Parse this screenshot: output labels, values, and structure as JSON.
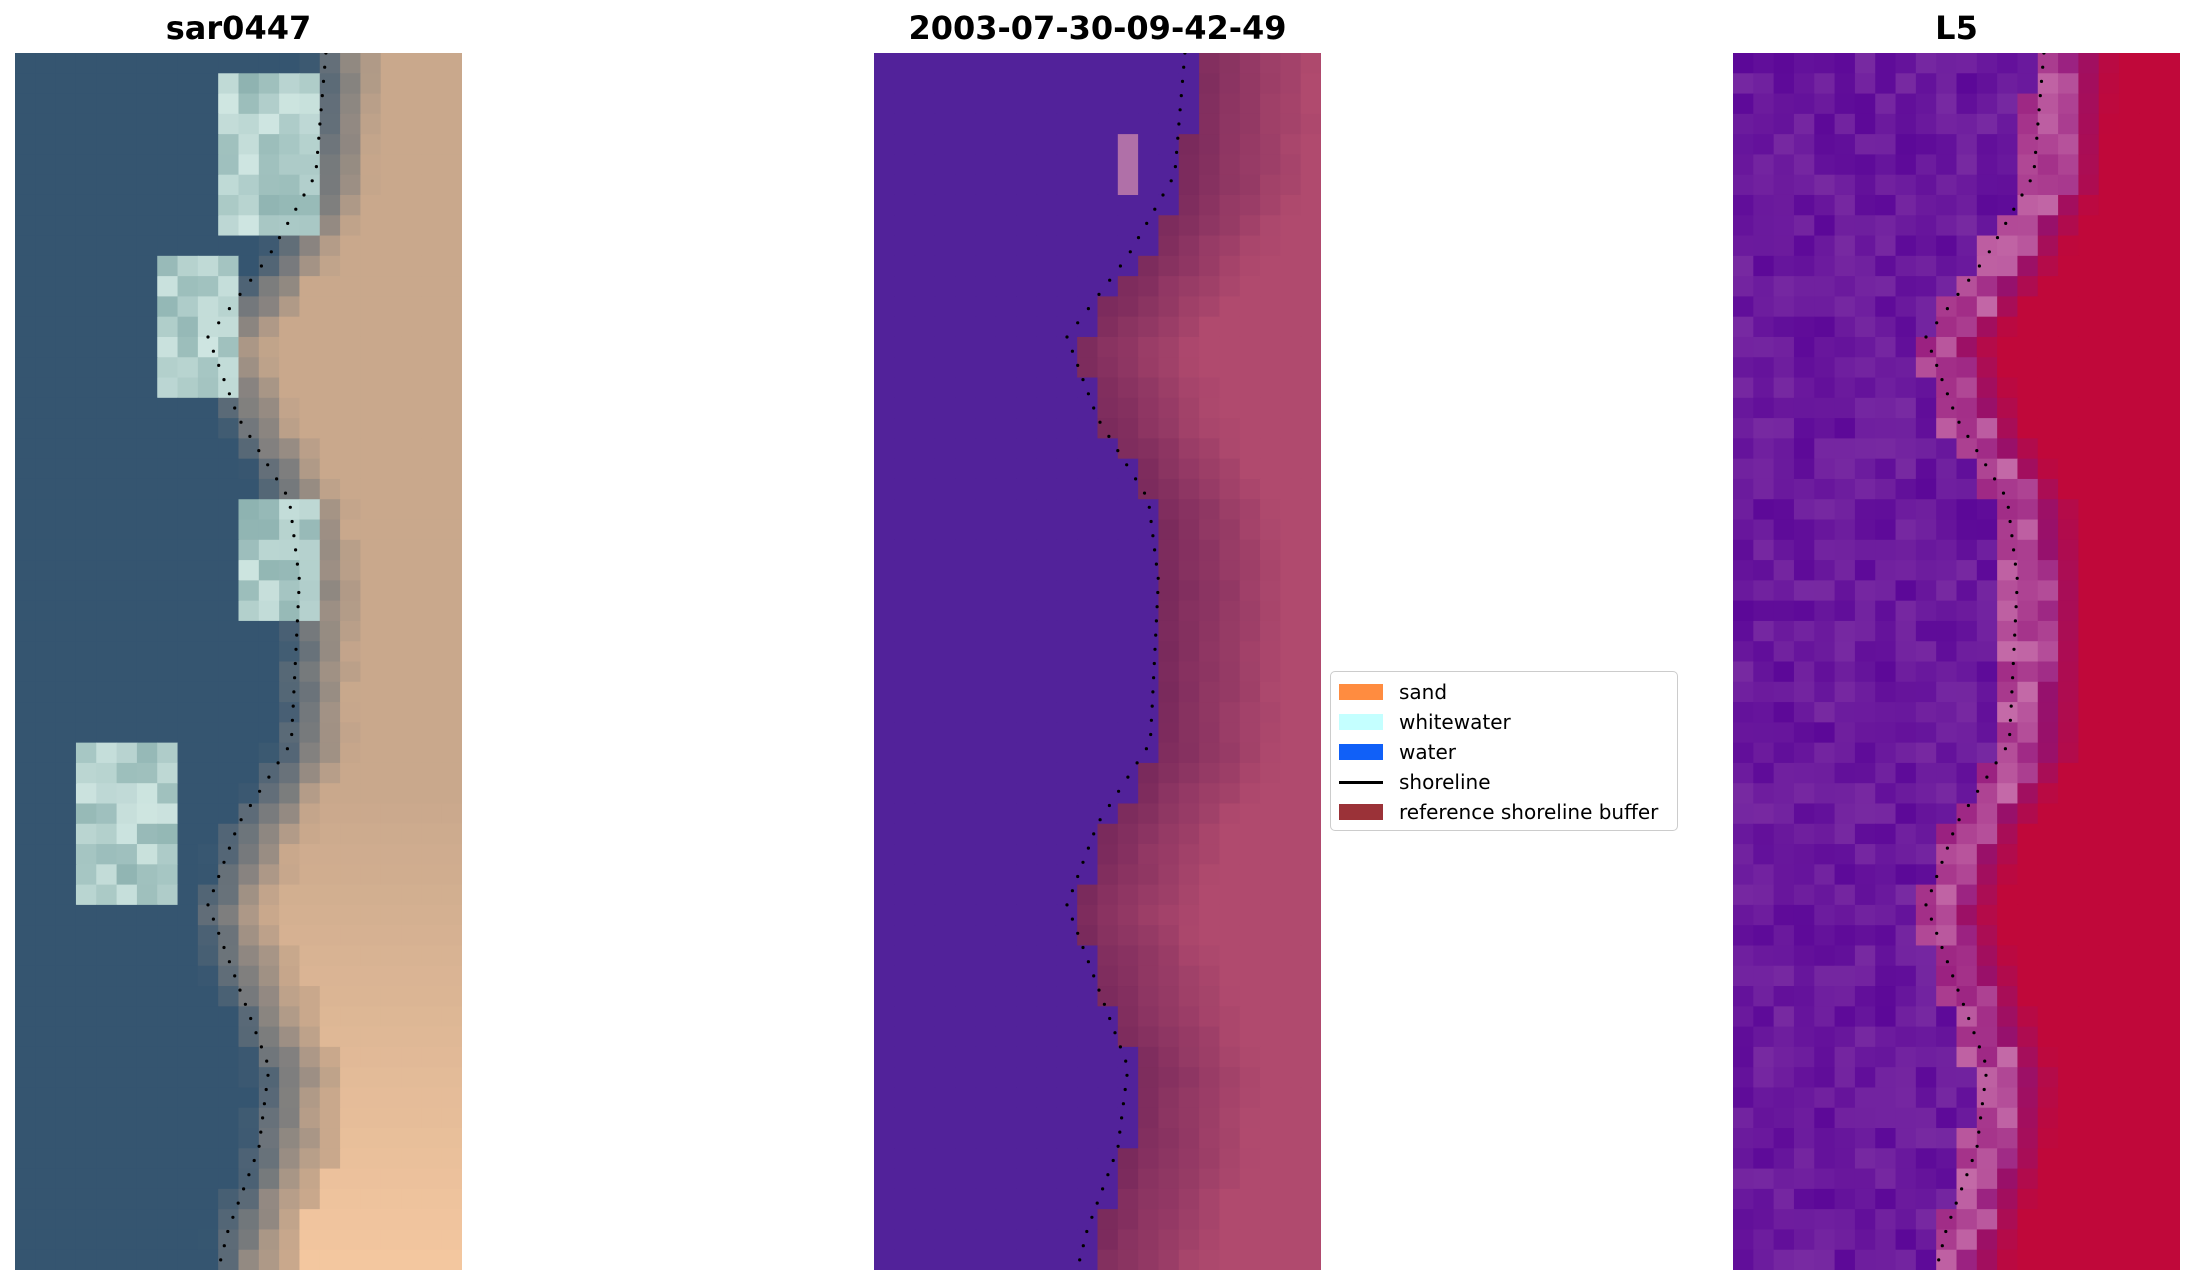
{
  "panels": [
    {
      "title": "sar0447"
    },
    {
      "title": "2003-07-30-09-42-49"
    },
    {
      "title": "L5"
    }
  ],
  "legend": {
    "items": [
      {
        "label": "sand",
        "color": "#ff8c40",
        "kind": "patch"
      },
      {
        "label": "whitewater",
        "color": "#c4ffff",
        "kind": "patch"
      },
      {
        "label": "water",
        "color": "#1060f8",
        "kind": "patch"
      },
      {
        "label": "shoreline",
        "color": "#000000",
        "kind": "line"
      },
      {
        "label": "reference shoreline buffer",
        "color": "#9b3238",
        "kind": "patch"
      }
    ]
  },
  "colors": {
    "rgb_water": "#355570",
    "rgb_sand": "#c9a88c",
    "class_water": "#52229a",
    "class_land": "#b04a6e",
    "index_water": "#6c1aa0",
    "index_land": "#c0083a"
  }
}
